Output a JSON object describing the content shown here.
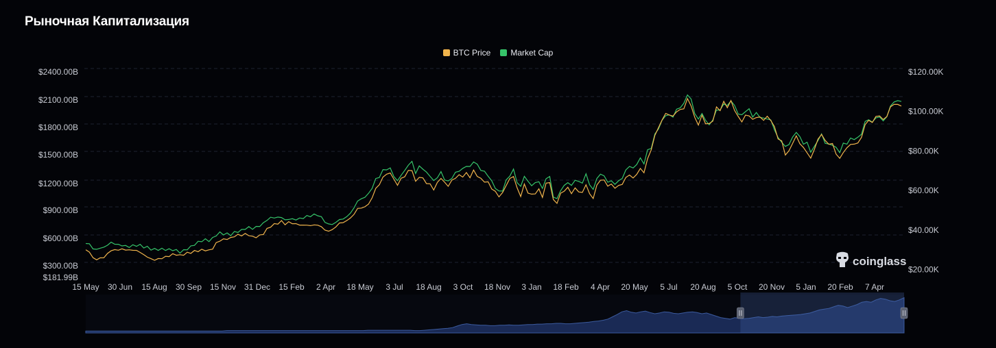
{
  "header": {
    "title": "Рыночная Капитализация"
  },
  "colors": {
    "btc_price": "#f0b44c",
    "market_cap": "#36c46a",
    "navigator_line": "#3b5a9e",
    "navigator_fill": "#1a2a55",
    "grid": "#1e2230",
    "background": "#030408"
  },
  "watermark": {
    "text": "coinglass",
    "icon": "coinglass-logo-icon"
  },
  "chart_data": {
    "type": "line",
    "grid": true,
    "legend_position": "top-center",
    "series": [
      {
        "name": "BTC Price",
        "axis": "right",
        "color": "#f0b44c",
        "values": [
          30000,
          29200,
          26600,
          25800,
          26700,
          26800,
          28500,
          29800,
          29700,
          29400,
          29500,
          29200,
          28900,
          29400,
          29100,
          29000,
          27600,
          27300,
          26000,
          25900,
          25900,
          26300,
          26400,
          26700,
          27000,
          26900,
          26200,
          26900,
          27700,
          28400,
          29300,
          30000,
          30500,
          30800,
          30300,
          31500,
          33500,
          34900,
          34700,
          35100,
          34900,
          36200,
          36600,
          37000,
          37600,
          37800,
          36900,
          37300,
          37900,
          39000,
          41000,
          42200,
          42800,
          43000,
          43700,
          42200,
          43000,
          42800,
          42400,
          42700,
          42400,
          43300,
          42700,
          43700,
          43000,
          42500,
          40000,
          39500,
          39600,
          41000,
          42600,
          43000,
          44000,
          45700,
          47800,
          51200,
          51700,
          52500,
          54000,
          57000,
          61700,
          63000,
          66800,
          67600,
          68300,
          64700,
          62000,
          65300,
          66800,
          69900,
          70700,
          65000,
          67800,
          66900,
          64600,
          63500,
          60800,
          63500,
          66000,
          63000,
          61700,
          64000,
          66000,
          67200,
          67300,
          69000,
          67600,
          70700,
          68500,
          66400,
          65200,
          64000,
          61000,
          58500,
          56500,
          57600,
          62300,
          65000,
          67300,
          61000,
          57900,
          63500,
          60000,
          58500,
          59400,
          60800,
          57000,
          63000,
          63800,
          54200,
          53000,
          57500,
          59500,
          61100,
          58900,
          61500,
          60300,
          59600,
          64000,
          58800,
          56500,
          62500,
          65000,
          64500,
          61500,
          62300,
          60500,
          62000,
          63000,
          66800,
          68400,
          67100,
          69000,
          72000,
          69500,
          76500,
          80400,
          87600,
          90900,
          95000,
          98000,
          97700,
          97000,
          100000,
          101000,
          102200,
          107000,
          104000,
          97500,
          94000,
          98000,
          94000,
          93000,
          94800,
          101000,
          100000,
          104000,
          102000,
          105000,
          101300,
          97600,
          96000,
          98500,
          99000,
          96000,
          97600,
          96500,
          95500,
          96300,
          95000,
          91000,
          86000,
          84300,
          78500,
          80000,
          85000,
          88000,
          85000,
          82000,
          80000,
          76000,
          81000,
          85000,
          88000,
          84000,
          83000,
          82800,
          78500,
          76000,
          80000,
          82000,
          84500,
          84000,
          85000,
          87000,
          93600,
          95000,
          94000,
          96500,
          97000,
          95000,
          97000,
          102000,
          103800,
          104000,
          103500
        ]
      },
      {
        "name": "Market Cap",
        "axis": "left",
        "color": "#36c46a"
      }
    ],
    "x_tick_labels": [
      "15 May",
      "30 Jun",
      "15 Aug",
      "30 Sep",
      "15 Nov",
      "31 Dec",
      "15 Feb",
      "2 Apr",
      "18 May",
      "3 Jul",
      "18 Aug",
      "3 Oct",
      "18 Nov",
      "3 Jan",
      "18 Feb",
      "4 Apr",
      "20 May",
      "5 Jul",
      "20 Aug",
      "5 Oct",
      "20 Nov",
      "5 Jan",
      "20 Feb",
      "7 Apr"
    ],
    "left_axis": {
      "ticks": [
        181.99,
        300,
        600,
        900,
        1200,
        1500,
        1800,
        2100,
        2400
      ],
      "tick_labels": [
        "$181.99B",
        "$300.00B",
        "$600.00B",
        "$900.00B",
        "$1200.00B",
        "$1500.00B",
        "$1800.00B",
        "$2100.00B",
        "$2400.00B"
      ]
    },
    "right_axis": {
      "ticks": [
        20000,
        40000,
        60000,
        80000,
        100000,
        120000
      ],
      "tick_labels": [
        "$20.00K",
        "$40.00K",
        "$60.00K",
        "$80.00K",
        "$100.00K",
        "$120.00K"
      ],
      "range": [
        16000,
        120000
      ]
    },
    "navigator": {
      "selected_range_fraction": [
        0.8,
        1.0
      ],
      "values": [
        0.05,
        0.05,
        0.05,
        0.05,
        0.05,
        0.05,
        0.05,
        0.05,
        0.05,
        0.05,
        0.05,
        0.05,
        0.05,
        0.05,
        0.05,
        0.05,
        0.05,
        0.05,
        0.05,
        0.05,
        0.05,
        0.05,
        0.05,
        0.05,
        0.05,
        0.05,
        0.05,
        0.05,
        0.05,
        0.05,
        0.06,
        0.06,
        0.06,
        0.06,
        0.06,
        0.06,
        0.06,
        0.06,
        0.06,
        0.06,
        0.06,
        0.06,
        0.06,
        0.06,
        0.06,
        0.06,
        0.06,
        0.06,
        0.06,
        0.06,
        0.06,
        0.06,
        0.06,
        0.06,
        0.06,
        0.06,
        0.06,
        0.06,
        0.06,
        0.06,
        0.07,
        0.07,
        0.07,
        0.07,
        0.07,
        0.07,
        0.07,
        0.07,
        0.07,
        0.07,
        0.06,
        0.06,
        0.07,
        0.08,
        0.09,
        0.1,
        0.11,
        0.12,
        0.14,
        0.18,
        0.22,
        0.24,
        0.22,
        0.21,
        0.2,
        0.2,
        0.19,
        0.19,
        0.2,
        0.2,
        0.21,
        0.2,
        0.2,
        0.21,
        0.22,
        0.22,
        0.23,
        0.23,
        0.24,
        0.24,
        0.25,
        0.25,
        0.24,
        0.24,
        0.25,
        0.26,
        0.27,
        0.28,
        0.3,
        0.31,
        0.33,
        0.36,
        0.42,
        0.48,
        0.55,
        0.58,
        0.54,
        0.52,
        0.55,
        0.57,
        0.53,
        0.5,
        0.52,
        0.55,
        0.54,
        0.51,
        0.5,
        0.52,
        0.54,
        0.55,
        0.53,
        0.5,
        0.52,
        0.48,
        0.44,
        0.4,
        0.38,
        0.36,
        0.4,
        0.38,
        0.37,
        0.38,
        0.4,
        0.42,
        0.4,
        0.41,
        0.43,
        0.42,
        0.44,
        0.45,
        0.46,
        0.47,
        0.48,
        0.5,
        0.52,
        0.56,
        0.6,
        0.62,
        0.64,
        0.68,
        0.72,
        0.7,
        0.66,
        0.7,
        0.74,
        0.8,
        0.82,
        0.8,
        0.86,
        0.9,
        0.88,
        0.84,
        0.82,
        0.86,
        0.92
      ]
    }
  }
}
